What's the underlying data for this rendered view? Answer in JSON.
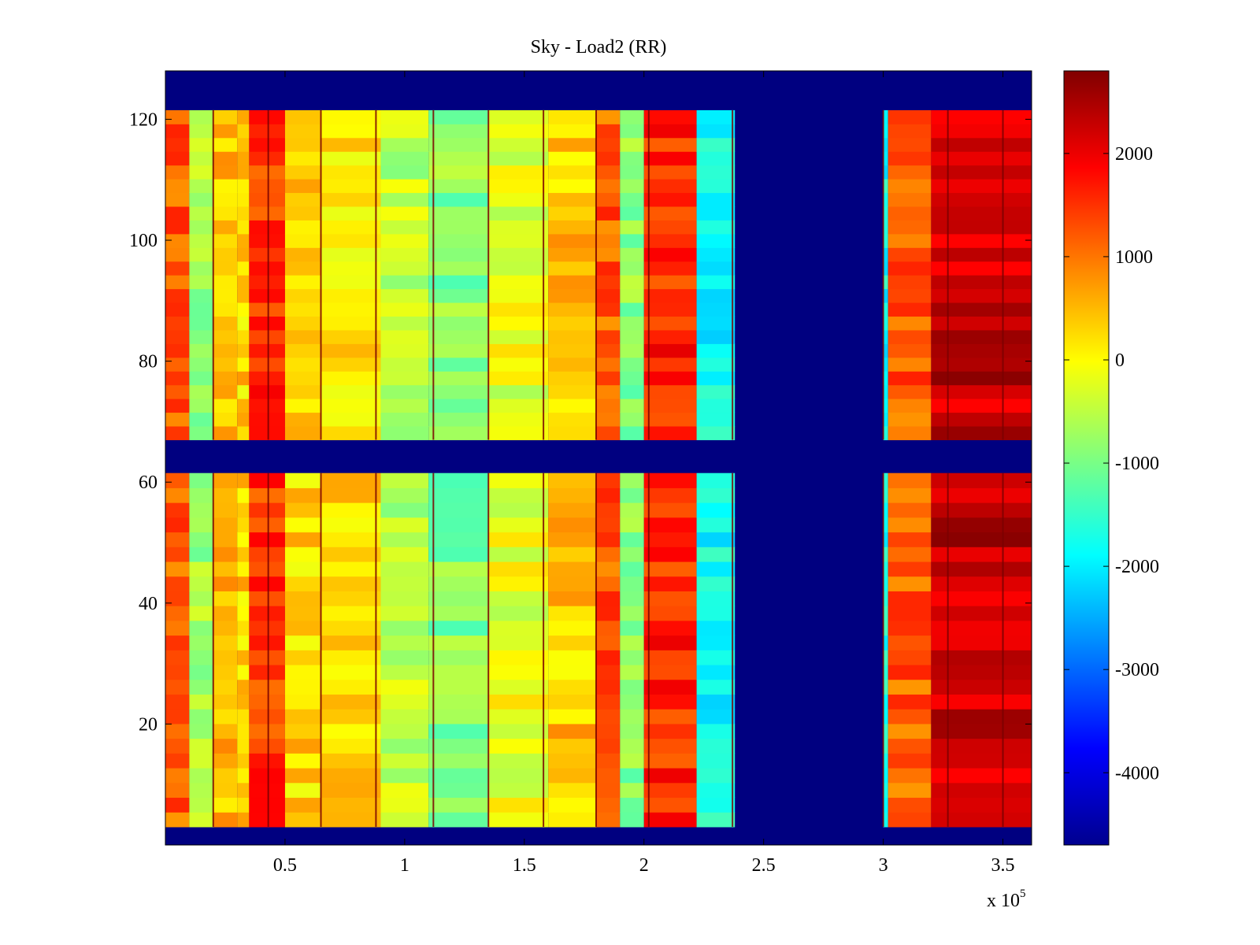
{
  "chart_data": {
    "type": "heatmap",
    "title": "Sky - Load2 (RR)",
    "xlabel": "",
    "ylabel": "",
    "x_multiplier_label": "x 10",
    "x_multiplier_exponent": "5",
    "xlim": [
      0,
      3.62
    ],
    "ylim": [
      0,
      128
    ],
    "xticks": [
      0.5,
      1,
      1.5,
      2,
      2.5,
      3,
      3.5
    ],
    "xtick_labels": [
      "0.5",
      "1",
      "1.5",
      "2",
      "2.5",
      "3",
      "3.5"
    ],
    "yticks": [
      20,
      40,
      60,
      80,
      100,
      120
    ],
    "ytick_labels": [
      "20",
      "40",
      "60",
      "80",
      "100",
      "120"
    ],
    "colormap": "jet",
    "clim": [
      -4700,
      2800
    ],
    "colorbar_ticks": [
      2000,
      1000,
      0,
      -1000,
      -2000,
      -3000,
      -4000
    ],
    "colorbar_tick_labels": [
      "2000",
      "1000",
      "0",
      "-1000",
      "-2000",
      "-3000",
      "-4000"
    ],
    "masked_value": -4700,
    "masked_rows": [
      [
        0,
        3
      ],
      [
        67,
        61.5
      ],
      [
        121.5,
        128
      ]
    ],
    "data_bands": [
      {
        "y": [
          3,
          61.5
        ],
        "x": [
          0,
          2.38
        ]
      },
      {
        "y": [
          67,
          121.5
        ],
        "x": [
          0,
          2.38
        ]
      },
      {
        "y": [
          3,
          61.5
        ],
        "x": [
          3,
          3.62
        ]
      },
      {
        "y": [
          67,
          121.5
        ],
        "x": [
          3,
          3.62
        ]
      }
    ],
    "masked_columns": [
      [
        2.38,
        3
      ]
    ],
    "column_profile": [
      {
        "x": [
          0,
          0.1
        ],
        "value": 1200
      },
      {
        "x": [
          0.1,
          0.2
        ],
        "value": -700
      },
      {
        "x": [
          0.2,
          0.3
        ],
        "value": 500
      },
      {
        "x": [
          0.3,
          0.35
        ],
        "value": 300
      },
      {
        "x": [
          0.35,
          0.5
        ],
        "value": 1500
      },
      {
        "x": [
          0.5,
          0.65
        ],
        "value": 300
      },
      {
        "x": [
          0.65,
          0.9
        ],
        "value": 200
      },
      {
        "x": [
          0.9,
          1.1
        ],
        "value": -500
      },
      {
        "x": [
          1.1,
          1.35
        ],
        "value": -900
      },
      {
        "x": [
          1.35,
          1.6
        ],
        "value": -200
      },
      {
        "x": [
          1.6,
          1.8
        ],
        "value": 400
      },
      {
        "x": [
          1.8,
          1.9
        ],
        "value": 1200
      },
      {
        "x": [
          1.9,
          2.0
        ],
        "value": -900
      },
      {
        "x": [
          2.0,
          2.22
        ],
        "value": 1600
      },
      {
        "x": [
          2.22,
          2.38
        ],
        "value": -1800
      },
      {
        "x": [
          3,
          3.02
        ],
        "value": -1800
      },
      {
        "x": [
          3.02,
          3.2
        ],
        "value": 1200
      },
      {
        "x": [
          3.2,
          3.62
        ],
        "value": 2300
      }
    ],
    "dark_column_lines": [
      0.2,
      0.43,
      0.65,
      0.88,
      1.12,
      1.35,
      1.58,
      1.8,
      2.02,
      2.37,
      3.0,
      3.27,
      3.5
    ]
  }
}
